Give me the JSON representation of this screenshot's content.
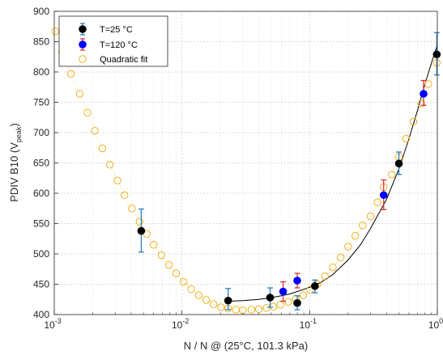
{
  "chart_data": {
    "type": "scatter",
    "xscale": "log",
    "xlim": [
      0.001,
      1
    ],
    "ylim": [
      400,
      900
    ],
    "grid": true,
    "legend_position": "top-left",
    "xlabel": "N / N @ (25°C, 101.3 kPa)",
    "ylabel_main": "PDIV B10 (V",
    "ylabel_sub": "peak",
    "ylabel_close": ")",
    "x_ticks": [
      {
        "value": 0.001,
        "base": "10",
        "exp": "-3"
      },
      {
        "value": 0.01,
        "base": "10",
        "exp": "-2"
      },
      {
        "value": 0.1,
        "base": "10",
        "exp": "-1"
      },
      {
        "value": 1,
        "base": "10",
        "exp": "0"
      }
    ],
    "y_ticks": [
      "400",
      "450",
      "500",
      "550",
      "600",
      "650",
      "700",
      "750",
      "800",
      "850",
      "900"
    ],
    "legend": [
      {
        "label": "T=25 °C",
        "color": "#000000",
        "marker": "filled-circle",
        "errorbar": "#1f77b4"
      },
      {
        "label": "T=120 °C",
        "color": "#0000ff",
        "marker": "filled-circle",
        "errorbar": "#d62728"
      },
      {
        "label": "Quadratic fit",
        "color": "#edb120",
        "marker": "open-circle"
      }
    ],
    "series": [
      {
        "name": "T=25 °C",
        "color": "#000000",
        "errorbar_color": "#1f77b4",
        "points": [
          {
            "x": 0.0048,
            "y": 538,
            "lo": 503,
            "hi": 574
          },
          {
            "x": 0.023,
            "y": 423,
            "lo": 408,
            "hi": 443
          },
          {
            "x": 0.049,
            "y": 428,
            "lo": 412,
            "hi": 444
          },
          {
            "x": 0.08,
            "y": 419,
            "lo": 408,
            "hi": 431
          },
          {
            "x": 0.11,
            "y": 447,
            "lo": 436,
            "hi": 457
          },
          {
            "x": 0.5,
            "y": 649,
            "lo": 631,
            "hi": 668
          },
          {
            "x": 0.99,
            "y": 829,
            "lo": 795,
            "hi": 865
          }
        ]
      },
      {
        "name": "T=120 °C",
        "color": "#0000ff",
        "errorbar_color": "#d62728",
        "points": [
          {
            "x": 0.062,
            "y": 438,
            "lo": 422,
            "hi": 454
          },
          {
            "x": 0.08,
            "y": 456,
            "lo": 444,
            "hi": 468
          },
          {
            "x": 0.38,
            "y": 597,
            "lo": 573,
            "hi": 622
          },
          {
            "x": 0.78,
            "y": 764,
            "lo": 745,
            "hi": 786
          }
        ]
      },
      {
        "name": "Quadratic fit",
        "color": "#edb120",
        "x": [
          0.00102,
          0.00115,
          0.00135,
          0.00158,
          0.00182,
          0.00208,
          0.00238,
          0.00272,
          0.00312,
          0.00355,
          0.00405,
          0.00465,
          0.0053,
          0.006,
          0.0069,
          0.0079,
          0.009,
          0.0103,
          0.0118,
          0.0135,
          0.0155,
          0.0177,
          0.0202,
          0.023,
          0.0265,
          0.03,
          0.035,
          0.04,
          0.046,
          0.052,
          0.059,
          0.068,
          0.078,
          0.089,
          0.101,
          0.115,
          0.132,
          0.152,
          0.175,
          0.2,
          0.228,
          0.26,
          0.3,
          0.34,
          0.38,
          0.44,
          0.5,
          0.57,
          0.65,
          0.75,
          0.85,
          0.99
        ],
        "y": [
          867,
          832,
          797,
          764,
          733,
          703,
          674,
          647,
          621,
          597,
          575,
          553,
          533,
          515,
          498,
          482,
          468,
          454,
          442,
          432,
          424,
          417,
          412,
          410,
          408,
          407,
          408,
          409,
          411,
          413,
          416,
          421,
          426,
          432,
          441,
          450,
          463,
          478,
          494,
          512,
          530,
          547,
          562,
          585,
          610,
          631,
          660,
          690,
          718,
          748,
          780,
          815
        ]
      },
      {
        "name": "black-line",
        "color": "#000000",
        "x": [
          0.023,
          0.03,
          0.04,
          0.05,
          0.06,
          0.07,
          0.08,
          0.1,
          0.12,
          0.15,
          0.2,
          0.25,
          0.3,
          0.4,
          0.5,
          0.6,
          0.7,
          0.8,
          0.9,
          1.0
        ],
        "y": [
          422,
          423,
          425,
          428,
          431,
          434,
          438,
          445,
          452,
          465,
          490,
          515,
          542,
          590,
          640,
          690,
          737,
          780,
          815,
          845
        ]
      }
    ]
  }
}
